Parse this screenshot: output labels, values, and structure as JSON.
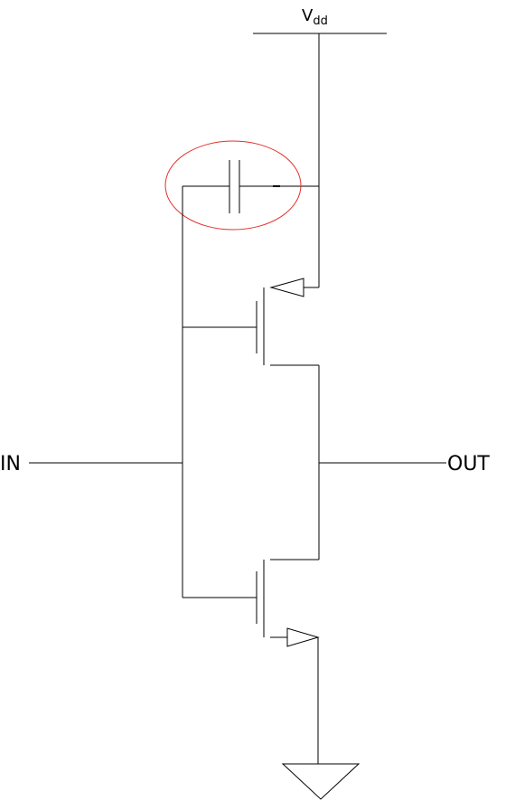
{
  "labels": {
    "vdd_main": "V",
    "vdd_sub": "dd",
    "input": "IN",
    "output": "OUT"
  },
  "colors": {
    "wire": "#000000",
    "highlight": "#e0302a",
    "background": "#ffffff"
  }
}
